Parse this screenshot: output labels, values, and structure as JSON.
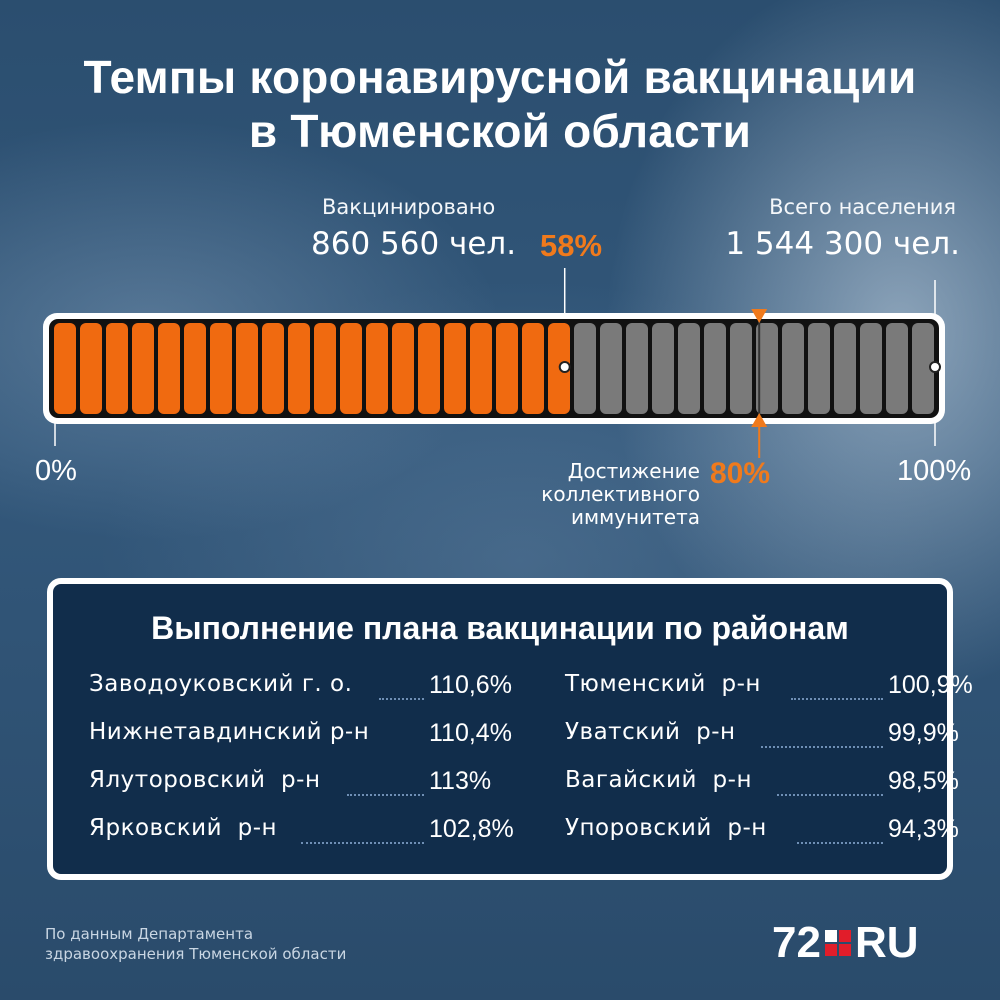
{
  "title_line1": "Темпы коронавирусной вакцинации",
  "title_line2": "в Тюменской области",
  "vaccinated": {
    "label": "Вакцинировано",
    "count": "860 560 чел.",
    "percent_label": "58%"
  },
  "population": {
    "label": "Всего населения",
    "count": "1 544 300 чел."
  },
  "axis": {
    "start": "0%",
    "end": "100%"
  },
  "threshold": {
    "line1": "Достижение",
    "line2": "коллективного",
    "line3": "иммунитета",
    "percent_label": "80%"
  },
  "colors": {
    "vaccinated": "#f06a10",
    "remaining": "#7a7a7a",
    "accent": "#f07a1c",
    "panel": "#112d4b"
  },
  "chart_data": {
    "type": "bar",
    "segments_total": 34,
    "vaccinated_fraction": 0.58,
    "threshold_fraction": 0.8,
    "range": [
      0,
      100
    ]
  },
  "districts": {
    "title": "Выполнение плана вакцинации по районам",
    "left": [
      {
        "name": "Заводоуковский г. о.",
        "value": "110,6%"
      },
      {
        "name": "Нижнетавдинский р-н",
        "value": "110,4%"
      },
      {
        "name": "Ялуторовский  р-н",
        "value": "113%"
      },
      {
        "name": "Ярковский  р-н",
        "value": "102,8%"
      }
    ],
    "right": [
      {
        "name": "Тюменский  р-н",
        "value": "100,9%"
      },
      {
        "name": "Уватский  р-н",
        "value": "99,9%"
      },
      {
        "name": "Вагайский  р-н",
        "value": "98,5%"
      },
      {
        "name": "Упоровский  р-н",
        "value": "94,3%"
      }
    ]
  },
  "source_line1": "По данным Департамента",
  "source_line2": "здравоохранения Тюменской области",
  "logo": {
    "number": "72",
    "suffix": "RU"
  }
}
